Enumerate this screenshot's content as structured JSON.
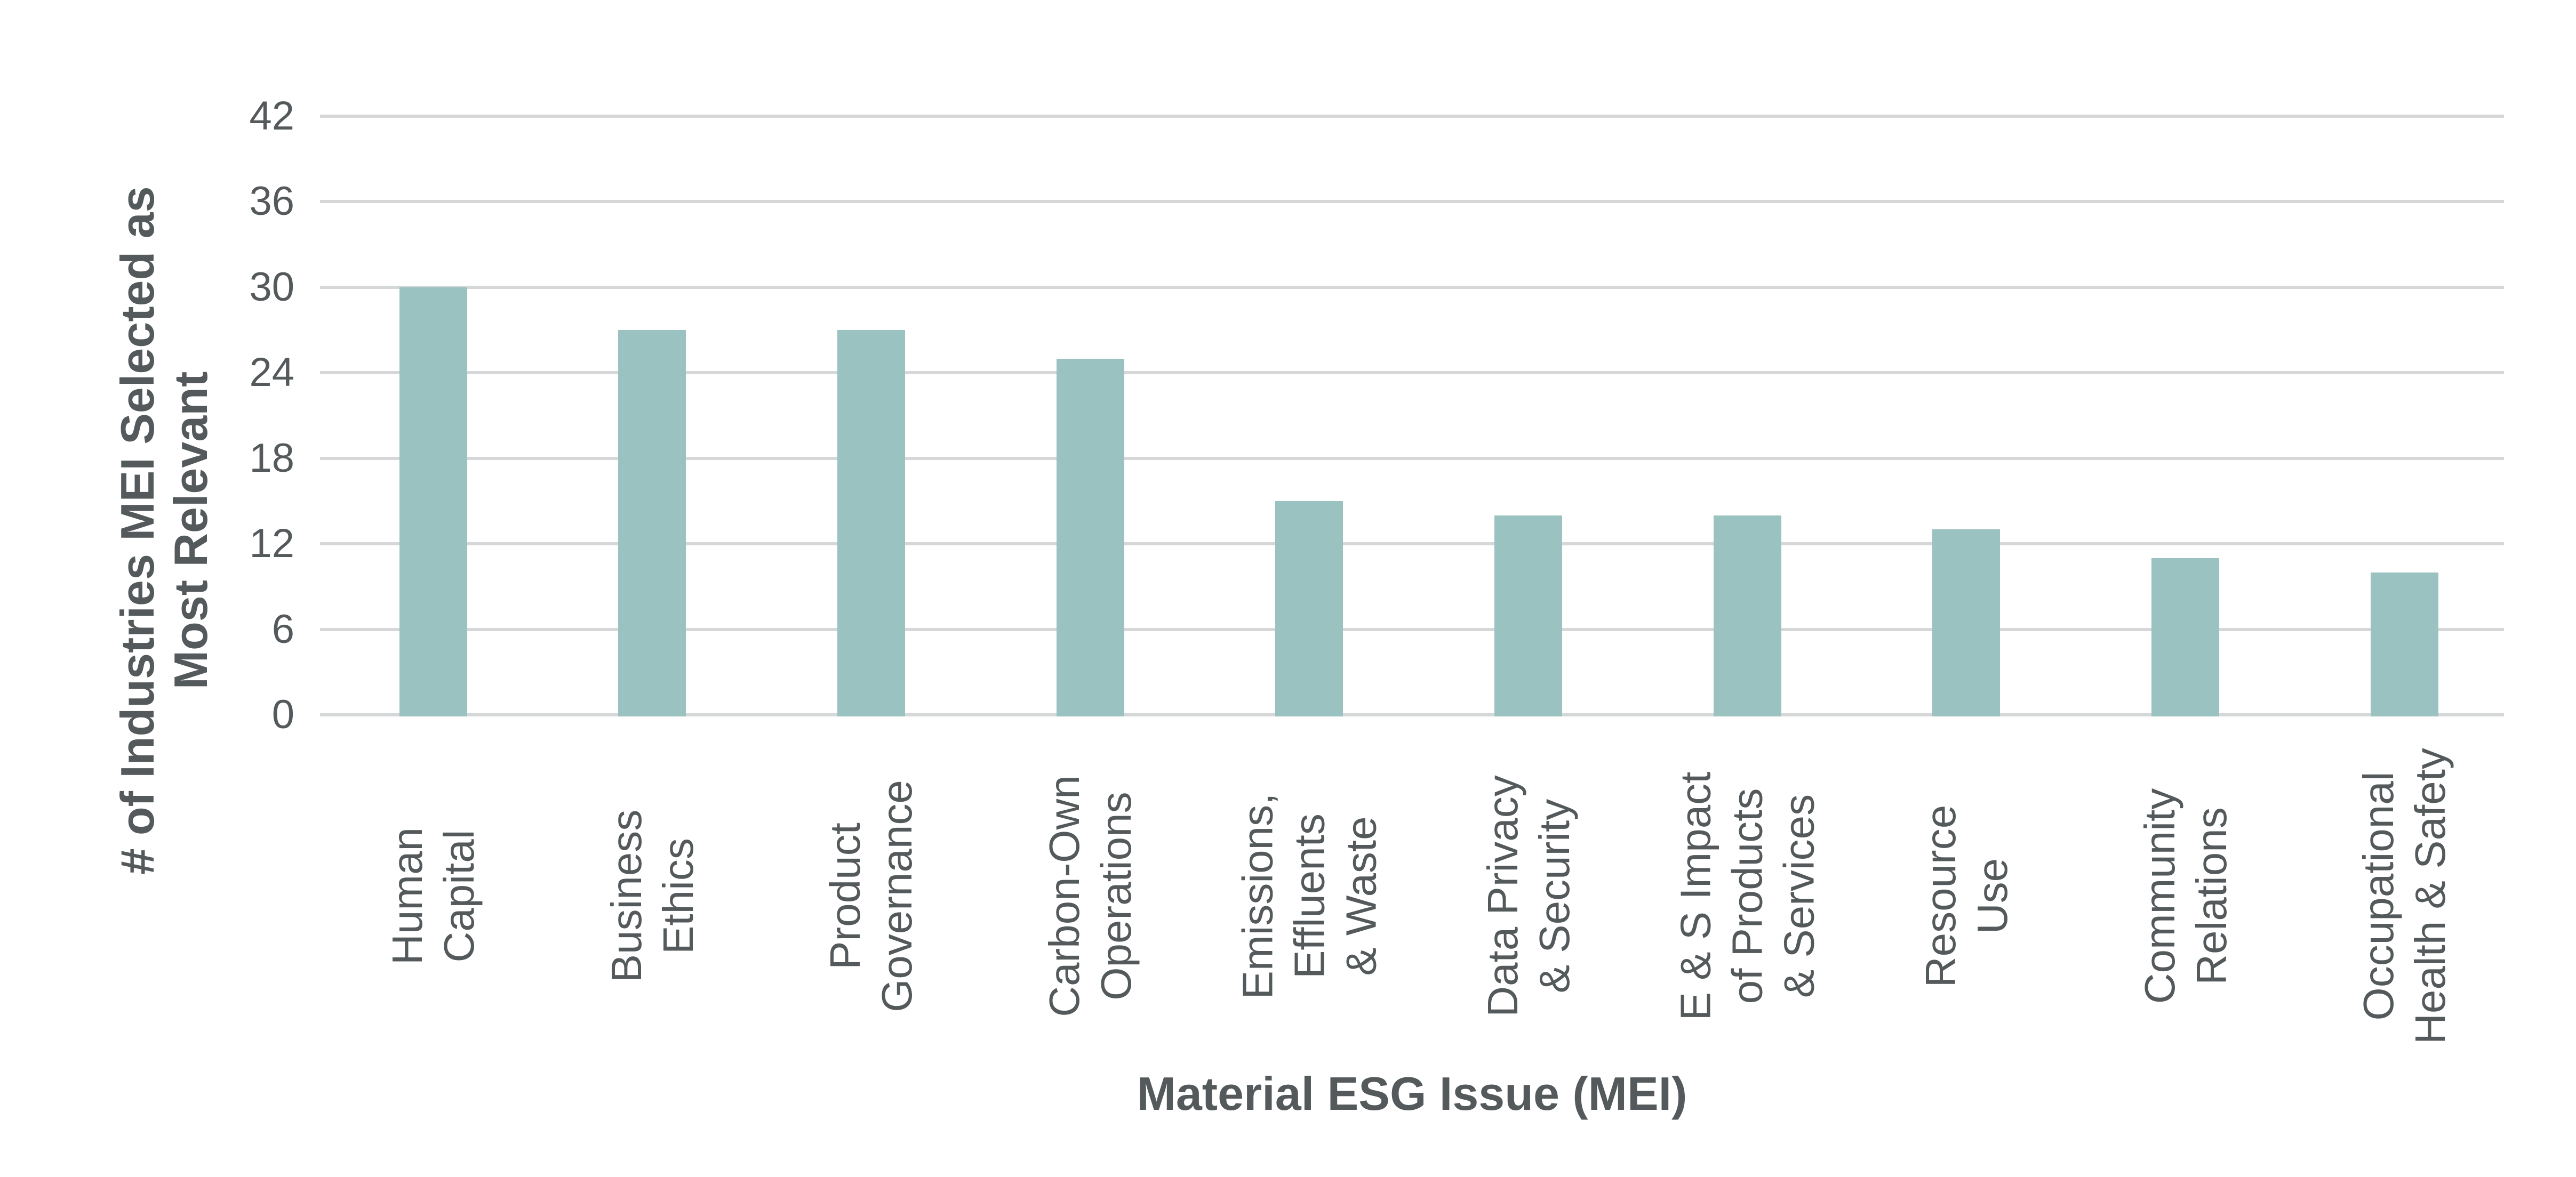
{
  "chart_data": {
    "type": "bar",
    "title": "",
    "xlabel": "Material ESG Issue (MEI)",
    "ylabel": "# of Industries MEI Selected as\nMost Relevant",
    "categories": [
      [
        "Human",
        "Capital"
      ],
      [
        "Business",
        "Ethics"
      ],
      [
        "Product",
        "Governance"
      ],
      [
        "Carbon-Own",
        "Operations"
      ],
      [
        "Emissions,",
        "Effluents",
        "& Waste"
      ],
      [
        "Data Privacy",
        "& Security"
      ],
      [
        "E & S Impact",
        "of Products",
        "& Services"
      ],
      [
        "Resource",
        "Use"
      ],
      [
        "Community",
        "Relations"
      ],
      [
        "Occupational",
        "Health & Safety"
      ]
    ],
    "values": [
      30,
      27,
      27,
      25,
      15,
      14,
      14,
      13,
      11,
      10
    ],
    "yticks": [
      0,
      6,
      12,
      18,
      24,
      30,
      36,
      42
    ],
    "ylim": [
      0,
      42
    ],
    "grid": true,
    "legend": false,
    "bar_color": "#9ac2c0",
    "grid_color": "#d5d7d8",
    "text_color": "#54595b",
    "background": "#ffffff"
  }
}
